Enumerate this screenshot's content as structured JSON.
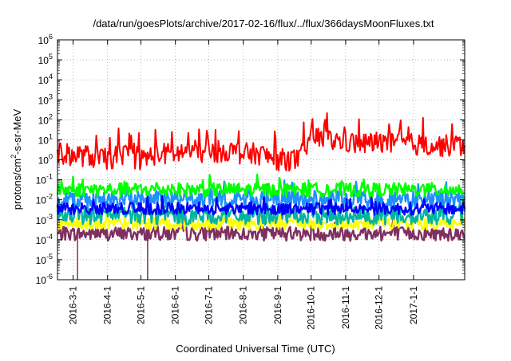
{
  "chart_data": {
    "type": "line",
    "title": "/data/run/goesPlots/archive/2017-02-16/flux/../flux/366daysMoonFluxes.txt",
    "xlabel": "Coordinated Universal Time (UTC)",
    "ylabel_parts": [
      "protons/cm",
      "2",
      "-s-sr-MeV"
    ],
    "yscale": "log",
    "ylim": [
      1e-06,
      1000000.0
    ],
    "y_ticks": [
      {
        "base": "10",
        "exp": "-6"
      },
      {
        "base": "10",
        "exp": "-5"
      },
      {
        "base": "10",
        "exp": "-4"
      },
      {
        "base": "10",
        "exp": "-3"
      },
      {
        "base": "10",
        "exp": "-2"
      },
      {
        "base": "10",
        "exp": "-1"
      },
      {
        "base": "10",
        "exp": "0"
      },
      {
        "base": "10",
        "exp": "1"
      },
      {
        "base": "10",
        "exp": "2"
      },
      {
        "base": "10",
        "exp": "3"
      },
      {
        "base": "10",
        "exp": "4"
      },
      {
        "base": "10",
        "exp": "5"
      },
      {
        "base": "10",
        "exp": "6"
      }
    ],
    "xlim": [
      "2016-02-16",
      "2017-02-16"
    ],
    "x_ticks": [
      "2016-3-1",
      "2016-4-1",
      "2016-5-1",
      "2016-6-1",
      "2016-7-1",
      "2016-8-1",
      "2016-9-1",
      "2016-10-1",
      "2016-11-1",
      "2016-12-1",
      "2017-1-1"
    ],
    "grid": true,
    "series": [
      {
        "color": "#7f3060",
        "kind": "noise",
        "base_log": -3.7,
        "spread": 0.35,
        "spikes": [
          {
            "date": "2016-03-05",
            "value": 1e-06
          },
          {
            "date": "2016-05-07",
            "value": 1e-06
          }
        ]
      },
      {
        "color": "#ffff00",
        "kind": "noise",
        "base_log": -3.2,
        "spread": 0.3
      },
      {
        "color": "#00b4a0",
        "kind": "noise",
        "base_log": -2.8,
        "spread": 0.45
      },
      {
        "color": "#1e90ff",
        "kind": "noise",
        "base_log": -2.0,
        "spread": 0.45
      },
      {
        "color": "#0000ff",
        "kind": "noise",
        "base_log": -2.45,
        "spread": 0.3
      },
      {
        "color": "#00ff00",
        "kind": "noise",
        "base_log": -1.5,
        "spread": 0.35
      },
      {
        "color": "#ff0000",
        "kind": "trend",
        "x": [
          "2016-02-16",
          "2016-03-15",
          "2016-04-01",
          "2016-04-15",
          "2016-05-01",
          "2016-05-15",
          "2016-06-01",
          "2016-06-15",
          "2016-07-01",
          "2016-07-15",
          "2016-08-01",
          "2016-08-15",
          "2016-09-01",
          "2016-09-20",
          "2016-10-01",
          "2016-10-15",
          "2016-11-01",
          "2016-11-15",
          "2016-12-01",
          "2016-12-15",
          "2017-01-01",
          "2017-01-15",
          "2017-02-01",
          "2017-02-16"
        ],
        "y": [
          2,
          1.5,
          1,
          2,
          1,
          2,
          2,
          3,
          2,
          3,
          2,
          2,
          1,
          1,
          15,
          10,
          8,
          6,
          8,
          6,
          6,
          5,
          5,
          5
        ]
      }
    ]
  }
}
